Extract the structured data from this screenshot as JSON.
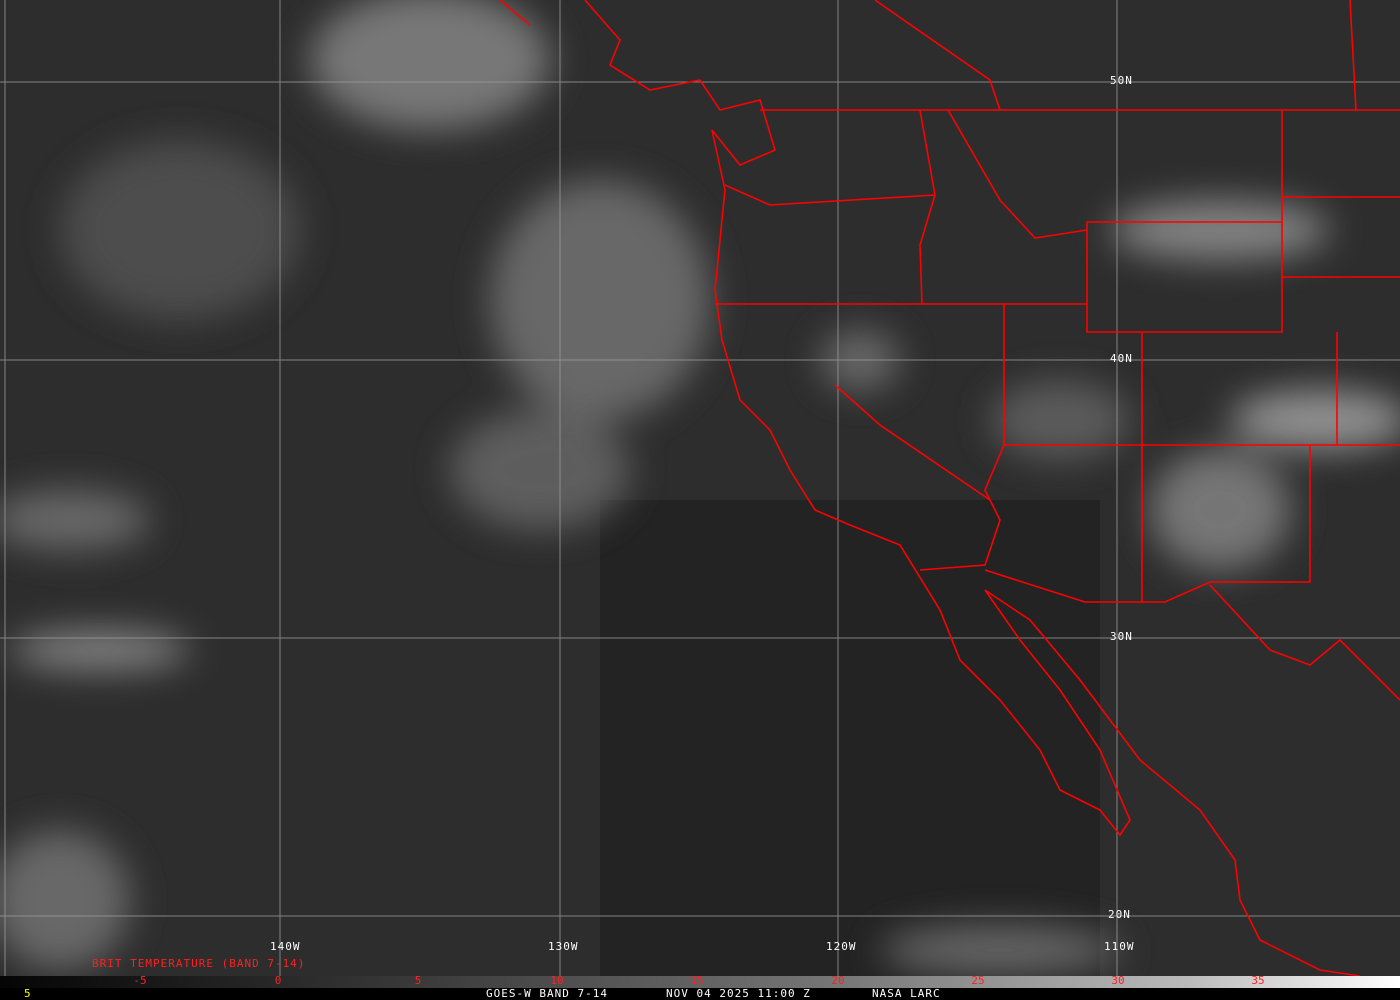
{
  "map": {
    "lat_labels": [
      "50N",
      "40N",
      "30N",
      "20N"
    ],
    "lon_labels": [
      "140W",
      "130W",
      "120W",
      "110W"
    ],
    "border_color": "#ff0000",
    "grid_color": "#9a9a9a"
  },
  "legend": {
    "title": "BRIT TEMPERATURE (BAND 7-14)",
    "ticks": [
      "-5",
      "0",
      "5",
      "10",
      "15",
      "20",
      "25",
      "30",
      "35"
    ],
    "tick_color": "#ff2020"
  },
  "footer": {
    "frame_number": "5",
    "satellite": "GOES-W BAND 7-14",
    "datetime": "NOV 04 2025 11:00 Z",
    "source": "NASA LARC"
  }
}
